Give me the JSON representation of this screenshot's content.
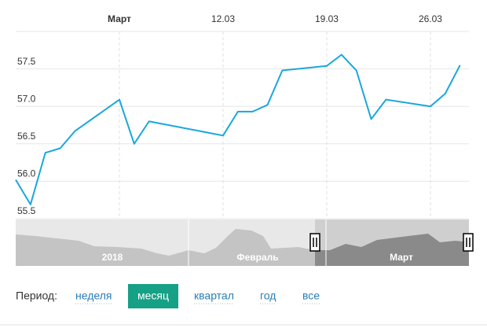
{
  "chart_data": {
    "type": "line",
    "color": "#1aa7dc",
    "grid": true,
    "x": [
      -2,
      -1,
      0,
      1,
      2,
      5,
      6,
      7,
      12,
      13,
      14,
      15,
      16,
      19,
      20,
      21,
      22,
      23,
      26,
      27,
      28
    ],
    "values": [
      56.02,
      55.69,
      56.38,
      56.44,
      56.67,
      57.09,
      56.5,
      56.8,
      56.61,
      56.93,
      56.93,
      57.02,
      57.48,
      57.54,
      57.69,
      57.48,
      56.83,
      57.09,
      57.0,
      57.17,
      57.55
    ],
    "xlim": [
      -2,
      28.6
    ],
    "xticks": [
      {
        "value": 5,
        "label": "Март"
      },
      {
        "value": 12,
        "label": "12.03"
      },
      {
        "value": 19,
        "label": "19.03"
      },
      {
        "value": 26,
        "label": "26.03"
      }
    ],
    "ylim": [
      55.5,
      58.0
    ],
    "yticks": [
      55.5,
      {
        "value": 56,
        "label": "56.0"
      },
      56.5,
      {
        "value": 57,
        "label": "57.0"
      },
      57.5
    ]
  },
  "navigator": {
    "labels": [
      "2018",
      "Февраль",
      "Март"
    ]
  },
  "period": {
    "label": "Период:",
    "options": [
      "неделя",
      "месяц",
      "квартал",
      "год",
      "все"
    ],
    "active": 1
  }
}
